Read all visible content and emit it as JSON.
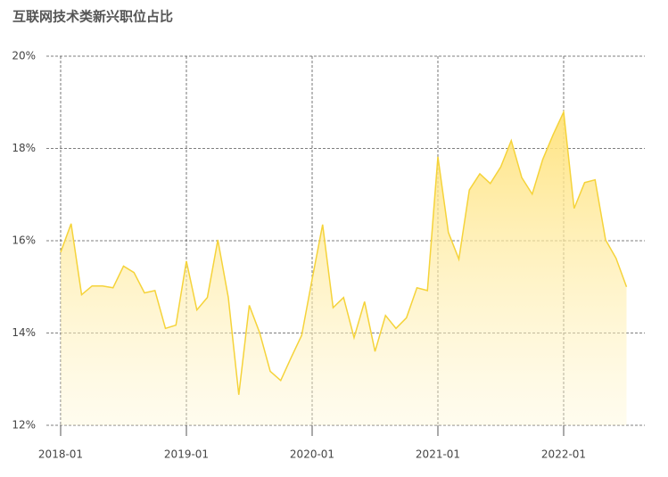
{
  "chart_data": {
    "type": "area",
    "title": "互联网技术类新兴职位占比",
    "categories": [
      "2018-01",
      null,
      null,
      null,
      null,
      null,
      null,
      null,
      null,
      null,
      null,
      null,
      "2019-01",
      null,
      null,
      null,
      null,
      null,
      null,
      null,
      null,
      null,
      null,
      null,
      "2020-01",
      null,
      null,
      null,
      null,
      null,
      null,
      null,
      null,
      null,
      null,
      null,
      "2021-01",
      null,
      null,
      null,
      null,
      null,
      null,
      null,
      null,
      null,
      null,
      null,
      "2022-01",
      null,
      null,
      null,
      null,
      null,
      null
    ],
    "values": [
      15.75,
      16.37,
      14.83,
      15.02,
      15.02,
      14.98,
      15.45,
      15.31,
      14.87,
      14.92,
      14.1,
      14.17,
      15.56,
      14.5,
      14.77,
      16.02,
      14.77,
      12.66,
      14.6,
      14.0,
      13.17,
      12.97,
      13.47,
      13.95,
      15.17,
      16.35,
      14.55,
      14.77,
      13.9,
      14.68,
      13.6,
      14.38,
      14.1,
      14.33,
      14.98,
      14.92,
      17.82,
      16.18,
      15.6,
      17.1,
      17.45,
      17.24,
      17.6,
      18.17,
      17.37,
      17.01,
      17.76,
      18.3,
      18.79,
      16.7,
      17.26,
      17.32,
      16.02,
      15.62,
      15.0
    ],
    "color": "#f5d33a",
    "ylim": [
      12,
      20
    ],
    "yticks": [
      {
        "value": 12,
        "label": "12%"
      },
      {
        "value": 14,
        "label": "14%"
      },
      {
        "value": 16,
        "label": "16%"
      },
      {
        "value": 18,
        "label": "18%"
      },
      {
        "value": 20,
        "label": "20%"
      }
    ],
    "grid": true
  }
}
